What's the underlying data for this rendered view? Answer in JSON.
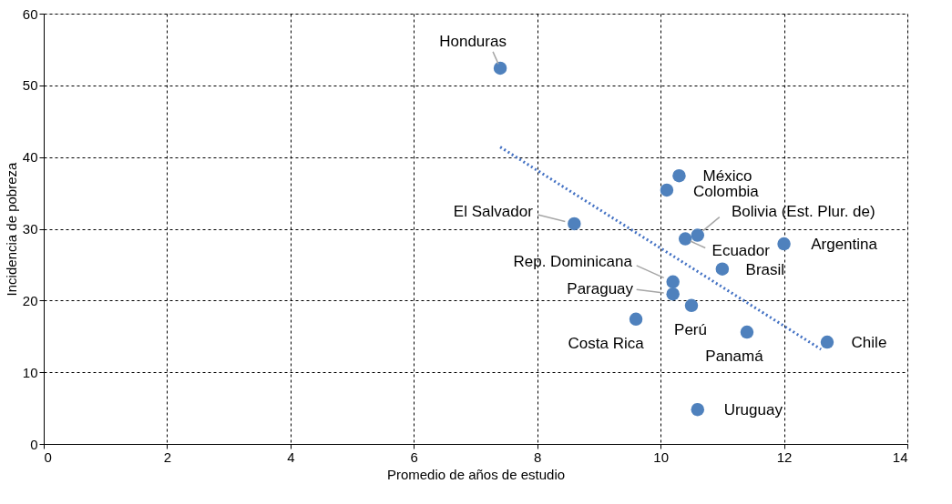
{
  "chart_data": {
    "type": "scatter",
    "xlabel": "Promedio de años de estudio",
    "ylabel": "Incidencia de pobreza",
    "xlim": [
      0,
      14
    ],
    "xticks": [
      0,
      2,
      4,
      6,
      8,
      10,
      12,
      14
    ],
    "ylim": [
      0,
      60
    ],
    "yticks": [
      0,
      10,
      20,
      30,
      40,
      50,
      60
    ],
    "grid": true,
    "series": [
      {
        "color": "#4f81bd",
        "marker": "circle",
        "x": [
          7.4,
          10.3,
          10.1,
          8.6,
          10.6,
          10.4,
          12.0,
          11.0,
          10.2,
          10.2,
          10.5,
          9.6,
          11.4,
          12.7,
          10.6
        ],
        "values": [
          52.4,
          37.4,
          35.4,
          30.7,
          29.1,
          28.6,
          27.9,
          24.4,
          22.6,
          20.9,
          19.3,
          17.4,
          15.6,
          14.2,
          4.8
        ]
      },
      {
        "type": "line",
        "color": "#4472c4",
        "line_style": "dotted",
        "x": [
          7.4,
          12.6
        ],
        "values": [
          41.4,
          13.2
        ]
      }
    ],
    "annotations": [
      {
        "text": "Honduras",
        "x": 7.4,
        "y": 52.4
      },
      {
        "text": "México",
        "x": 10.3,
        "y": 37.4
      },
      {
        "text": "Colombia",
        "x": 10.1,
        "y": 35.4
      },
      {
        "text": "El Salvador",
        "x": 8.6,
        "y": 30.7
      },
      {
        "text": "Bolivia (Est. Plur. de)",
        "x": 10.6,
        "y": 29.1
      },
      {
        "text": "Ecuador",
        "x": 10.4,
        "y": 28.6
      },
      {
        "text": "Argentina",
        "x": 12.0,
        "y": 27.9
      },
      {
        "text": "Brasil",
        "x": 11.0,
        "y": 24.4
      },
      {
        "text": "Rep. Dominicana",
        "x": 10.2,
        "y": 22.6
      },
      {
        "text": "Paraguay",
        "x": 10.2,
        "y": 20.9
      },
      {
        "text": "Perú",
        "x": 10.5,
        "y": 19.3
      },
      {
        "text": "Costa Rica",
        "x": 9.6,
        "y": 17.4
      },
      {
        "text": "Panamá",
        "x": 11.4,
        "y": 15.6
      },
      {
        "text": "Chile",
        "x": 12.7,
        "y": 14.2
      },
      {
        "text": "Uruguay",
        "x": 10.6,
        "y": 4.8
      }
    ]
  }
}
